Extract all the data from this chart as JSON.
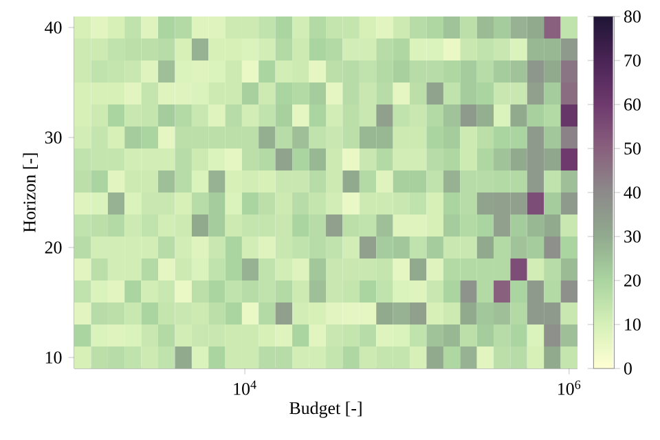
{
  "chart_data": {
    "type": "heatmap",
    "xlabel": "Budget [-]",
    "ylabel": "Horizon [-]",
    "log": "x",
    "xlim": [
      887,
      1127000
    ],
    "xticks": [
      {
        "value": 10000,
        "label": "10$^{4}$"
      },
      {
        "value": 1000000,
        "label": "10$^{6}$"
      }
    ],
    "clim": [
      0,
      80
    ],
    "cticks": [
      0,
      10,
      20,
      30,
      40,
      50,
      60,
      70,
      80
    ],
    "x": [
      1000,
      1270,
      1610,
      2040,
      2590,
      3290,
      4180,
      5300,
      6720,
      8530,
      10800,
      13700,
      17400,
      22100,
      28100,
      35600,
      45200,
      57400,
      72800,
      92400,
      117000,
      149000,
      189000,
      240000,
      304000,
      386000,
      489000,
      621000,
      788000,
      1000000
    ],
    "y_categories": [
      "40",
      null,
      null,
      null,
      null,
      "30",
      null,
      null,
      null,
      null,
      "20",
      null,
      null,
      null,
      null,
      "10"
    ],
    "cells": [
      [
        10,
        7,
        10,
        15,
        8,
        20,
        18,
        8,
        8,
        12,
        12,
        15,
        20,
        11,
        18,
        14,
        14,
        10,
        7,
        12,
        17,
        19,
        24,
        16,
        26,
        22,
        28,
        30,
        50,
        15
      ],
      [
        12,
        12,
        15,
        16,
        16,
        17,
        10,
        28,
        10,
        10,
        9,
        11,
        18,
        12,
        20,
        18,
        11,
        11,
        17,
        19,
        9,
        9,
        5,
        13,
        15,
        13,
        9,
        27,
        27,
        35
      ],
      [
        12,
        15,
        14,
        13,
        8,
        25,
        9,
        8,
        9,
        12,
        5,
        20,
        11,
        12,
        6,
        16,
        17,
        15,
        18,
        21,
        17,
        17,
        19,
        22,
        17,
        22,
        24,
        36,
        30,
        45
      ],
      [
        10,
        10,
        10,
        7,
        14,
        8,
        8,
        9,
        12,
        12,
        21,
        12,
        20,
        18,
        22,
        6,
        17,
        13,
        17,
        6,
        16,
        32,
        15,
        22,
        20,
        13,
        13,
        33,
        22,
        47
      ],
      [
        10,
        12,
        20,
        13,
        14,
        22,
        18,
        13,
        8,
        17,
        11,
        15,
        21,
        6,
        20,
        11,
        16,
        13,
        33,
        15,
        13,
        18,
        24,
        35,
        29,
        9,
        30,
        21,
        18,
        62
      ],
      [
        11,
        14,
        10,
        22,
        20,
        6,
        16,
        16,
        16,
        16,
        16,
        29,
        17,
        25,
        15,
        13,
        16,
        27,
        27,
        12,
        12,
        20,
        22,
        12,
        16,
        20,
        20,
        35,
        23,
        42
      ],
      [
        15,
        14,
        14,
        11,
        11,
        11,
        17,
        12,
        9,
        6,
        16,
        18,
        32,
        20,
        27,
        12,
        5,
        13,
        18,
        11,
        11,
        17,
        19,
        12,
        19,
        24,
        30,
        35,
        31,
        60
      ],
      [
        16,
        20,
        7,
        12,
        12,
        25,
        17,
        9,
        28,
        10,
        11,
        10,
        13,
        13,
        17,
        12,
        30,
        18,
        8,
        21,
        21,
        15,
        28,
        17,
        17,
        18,
        18,
        35,
        15,
        25
      ],
      [
        8,
        9,
        28,
        9,
        13,
        13,
        10,
        17,
        22,
        9,
        20,
        16,
        12,
        17,
        14,
        11,
        5,
        12,
        12,
        13,
        15,
        10,
        20,
        17,
        32,
        33,
        33,
        55,
        22,
        35
      ],
      [
        15,
        16,
        18,
        12,
        15,
        11,
        12,
        30,
        22,
        12,
        14,
        14,
        13,
        20,
        17,
        33,
        16,
        15,
        25,
        8,
        8,
        10,
        22,
        18,
        20,
        33,
        22,
        27,
        30,
        13
      ],
      [
        17,
        11,
        11,
        11,
        11,
        17,
        11,
        8,
        13,
        20,
        11,
        8,
        13,
        15,
        17,
        15,
        11,
        33,
        22,
        23,
        15,
        22,
        13,
        13,
        30,
        18,
        24,
        22,
        38,
        20
      ],
      [
        7,
        16,
        11,
        11,
        18,
        6,
        12,
        9,
        15,
        20,
        28,
        15,
        11,
        8,
        23,
        13,
        13,
        13,
        14,
        6,
        30,
        8,
        18,
        18,
        18,
        18,
        55,
        11,
        17,
        26
      ],
      [
        15,
        9,
        7,
        20,
        11,
        13,
        5,
        16,
        20,
        15,
        17,
        15,
        18,
        12,
        25,
        13,
        14,
        20,
        15,
        9,
        8,
        13,
        20,
        37,
        18,
        50,
        20,
        35,
        18,
        38
      ],
      [
        7,
        17,
        16,
        13,
        20,
        14,
        13,
        12,
        16,
        20,
        5,
        18,
        33,
        11,
        10,
        7,
        6,
        6,
        30,
        28,
        33,
        10,
        12,
        30,
        23,
        25,
        18,
        35,
        35,
        13
      ],
      [
        20,
        9,
        8,
        9,
        13,
        18,
        11,
        13,
        13,
        12,
        12,
        10,
        8,
        20,
        7,
        13,
        14,
        17,
        8,
        9,
        15,
        24,
        27,
        16,
        22,
        17,
        20,
        9,
        38,
        25
      ],
      [
        10,
        16,
        17,
        15,
        12,
        15,
        30,
        9,
        20,
        12,
        12,
        17,
        17,
        11,
        11,
        14,
        19,
        12,
        14,
        14,
        10,
        30,
        19,
        28,
        7,
        16,
        17,
        10,
        30,
        14
      ]
    ]
  }
}
